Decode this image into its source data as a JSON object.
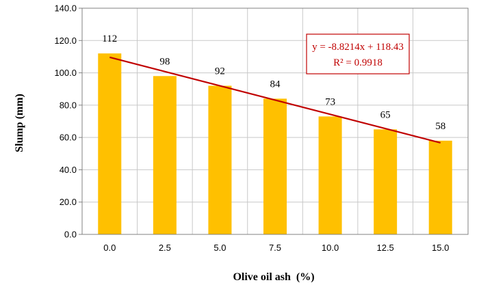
{
  "chart_data": {
    "type": "bar",
    "categories": [
      "0.0",
      "2.5",
      "5.0",
      "7.5",
      "10.0",
      "12.5",
      "15.0"
    ],
    "values": [
      112,
      98,
      92,
      84,
      73,
      65,
      58
    ],
    "data_labels": [
      "112",
      "98",
      "92",
      "84",
      "73",
      "65",
      "58"
    ],
    "xlabel": "Olive oil ash  (%)",
    "ylabel": "Slump (mm)",
    "ylim": [
      0,
      140
    ],
    "yticks": [
      "0.0",
      "20.0",
      "40.0",
      "60.0",
      "80.0",
      "100.0",
      "120.0",
      "140.0"
    ],
    "grid": true,
    "bar_color": "#ffc000",
    "trendline": {
      "type": "linear",
      "slope": -8.8214,
      "intercept": 118.43,
      "color": "#c00000",
      "equation": "y = -8.8214x  + 118.43",
      "r_squared": "R² = 0.9918"
    }
  }
}
